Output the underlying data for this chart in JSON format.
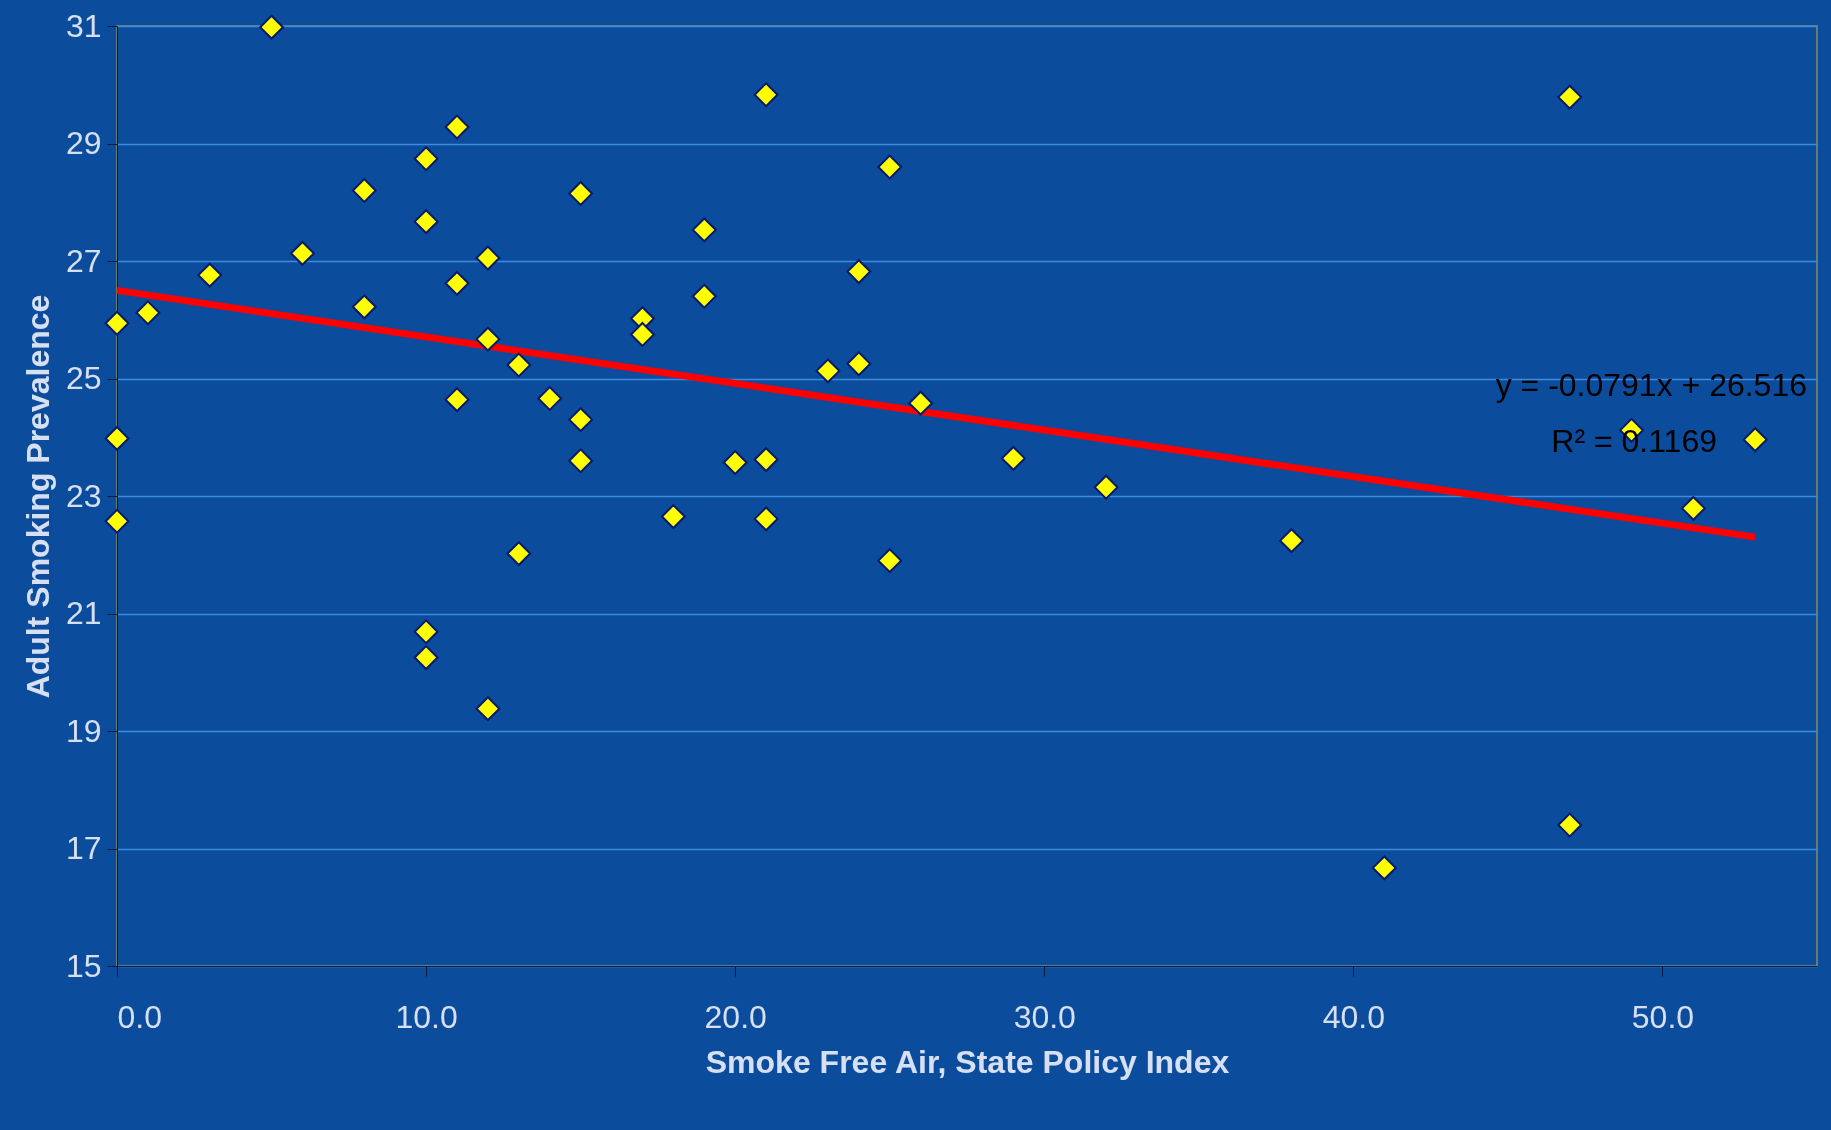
{
  "chart_data": {
    "type": "scatter",
    "xlabel": "Smoke Free Air, State Policy Index",
    "ylabel": "Adult Smoking Prevalence",
    "xlim": [
      0,
      55
    ],
    "xticks": [
      {
        "value": 0,
        "label": "0.0"
      },
      {
        "value": 10,
        "label": "10.0"
      },
      {
        "value": 20,
        "label": "20.0"
      },
      {
        "value": 30,
        "label": "30.0"
      },
      {
        "value": 40,
        "label": "40.0"
      },
      {
        "value": 50,
        "label": "50.0"
      }
    ],
    "ylim": [
      15,
      31
    ],
    "yticks": [
      15,
      17,
      19,
      21,
      23,
      25,
      27,
      29,
      31
    ],
    "grid": "y",
    "marker": "diamond",
    "series": [
      {
        "color": "#ffff00",
        "x": [
          0,
          0,
          0,
          1,
          3,
          5,
          6,
          8,
          8,
          10,
          10,
          10,
          10,
          11,
          11,
          11,
          12,
          12,
          12,
          13,
          13,
          14,
          15,
          15,
          15,
          17,
          17,
          18,
          19,
          19,
          20,
          21,
          21,
          21,
          23,
          24,
          24,
          25,
          25,
          26,
          29,
          32,
          38,
          41,
          47,
          47,
          49,
          51,
          53
        ],
        "values": [
          25.94,
          23.98,
          22.57,
          26.12,
          26.76,
          30.98,
          27.13,
          28.2,
          26.22,
          28.74,
          27.67,
          20.69,
          20.25,
          29.28,
          26.62,
          24.64,
          27.05,
          25.67,
          19.38,
          25.23,
          22.02,
          24.66,
          28.15,
          24.3,
          23.6,
          26.02,
          25.75,
          22.65,
          27.53,
          26.4,
          23.57,
          29.83,
          23.62,
          22.61,
          25.13,
          26.82,
          25.25,
          28.6,
          21.9,
          24.58,
          23.64,
          23.15,
          22.24,
          16.67,
          29.79,
          17.4,
          24.12,
          22.79,
          23.96
        ]
      },
      {
        "type": "line",
        "color": "#ff0000",
        "line_style": "solid",
        "marker": "none",
        "x": [
          0,
          53
        ],
        "values": [
          26.5,
          22.3
        ]
      }
    ],
    "annotations": [
      "y = -0.0791x  + 26.516",
      "R² = 0.1169"
    ]
  }
}
